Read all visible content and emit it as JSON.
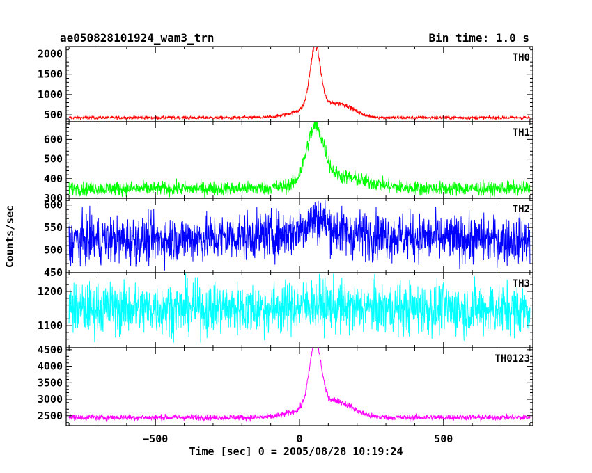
{
  "chart_data": {
    "type": "line",
    "title_left": "ae050828101924_wam3_trn",
    "title_right": "Bin time: 1.0 s",
    "xlabel": "Time [sec] 0 = 2005/08/28 10:19:24",
    "ylabel": "Counts/sec",
    "xlim": [
      -810,
      810
    ],
    "x_ticks": [
      -500,
      0,
      500
    ],
    "x_tick_labels": [
      "−500",
      "0",
      "500"
    ],
    "data_range": [
      -800,
      800
    ],
    "panels": [
      {
        "name": "TH0",
        "color": "#ff0000",
        "ylim": [
          330,
          2180
        ],
        "yticks": [
          500,
          1000,
          1500,
          2000
        ],
        "ytick_labels": [
          "500",
          "1000",
          "1500",
          "2000"
        ],
        "baseline": 430,
        "noise": 20,
        "components": [
          {
            "center": 55,
            "amplitude": 1500,
            "width": 18
          },
          {
            "center": 60,
            "amplitude": 260,
            "width": 70
          },
          {
            "center": 150,
            "amplitude": 220,
            "width": 45
          }
        ]
      },
      {
        "name": "TH1",
        "color": "#00ff00",
        "ylim": [
          300,
          690
        ],
        "yticks": [
          300,
          400,
          500,
          600
        ],
        "ytick_labels": [
          "300",
          "400",
          "500",
          "600"
        ],
        "baseline": 350,
        "noise": 18,
        "components": [
          {
            "center": 55,
            "amplitude": 270,
            "width": 30
          },
          {
            "center": 130,
            "amplitude": 60,
            "width": 100
          }
        ]
      },
      {
        "name": "TH2",
        "color": "#0000ff",
        "ylim": [
          450,
          615
        ],
        "yticks": [
          450,
          500,
          550,
          600
        ],
        "ytick_labels": [
          "450",
          "500",
          "550",
          "600"
        ],
        "baseline": 522,
        "noise": 26,
        "components": [
          {
            "center": 60,
            "amplitude": 32,
            "width": 40
          },
          {
            "center": 80,
            "amplitude": 15,
            "width": 250
          }
        ]
      },
      {
        "name": "TH3",
        "color": "#00ffff",
        "ylim": [
          1035,
          1255
        ],
        "yticks": [
          1100,
          1200
        ],
        "ytick_labels": [
          "1100",
          "1200"
        ],
        "baseline": 1150,
        "noise": 38,
        "components": [
          {
            "center": 60,
            "amplitude": 12,
            "width": 60
          }
        ]
      },
      {
        "name": "TH0123",
        "color": "#ff00ff",
        "ylim": [
          2200,
          4560
        ],
        "yticks": [
          2500,
          3000,
          3500,
          4000,
          4500
        ],
        "ytick_labels": [
          "2500",
          "3000",
          "3500",
          "4000",
          "4500"
        ],
        "baseline": 2450,
        "noise": 45,
        "components": [
          {
            "center": 55,
            "amplitude": 1900,
            "width": 20
          },
          {
            "center": 60,
            "amplitude": 350,
            "width": 70
          },
          {
            "center": 145,
            "amplitude": 300,
            "width": 50
          }
        ]
      }
    ]
  }
}
